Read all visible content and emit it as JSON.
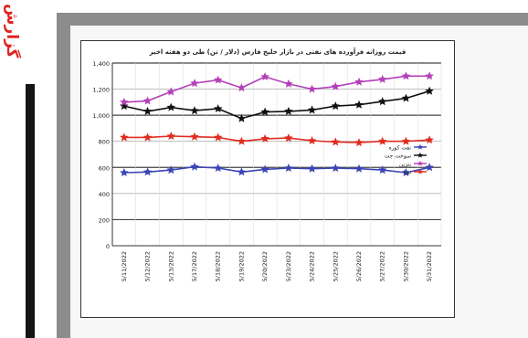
{
  "side_label": "گزارش",
  "chart_data": {
    "type": "line",
    "title": "قیمت روزانه فرآورده های نفتی در بازار خلیج فارس (دلار / تن) طی دو هفته اخیر",
    "xlabel": "",
    "ylabel": "",
    "ylim": [
      0,
      1400
    ],
    "yticks": [
      0,
      200,
      400,
      600,
      800,
      1000,
      1200,
      1400
    ],
    "ytick_labels": [
      "0",
      "200",
      "400",
      "600",
      "800",
      "1,000",
      "1,200",
      "1,400"
    ],
    "grid": true,
    "legend_position": "right",
    "categories": [
      "5/11/2022",
      "5/12/2022",
      "5/13/2022",
      "5/17/2022",
      "5/18/2022",
      "5/19/2022",
      "5/20/2022",
      "5/23/2022",
      "5/24/2022",
      "5/25/2022",
      "5/26/2022",
      "5/27/2022",
      "5/30/2022",
      "5/31/2022"
    ],
    "series": [
      {
        "name": "نفت کوره",
        "color": "#3a44b5",
        "marker": "star",
        "values": [
          560,
          565,
          580,
          605,
          595,
          565,
          585,
          595,
          590,
          595,
          590,
          580,
          560,
          600
        ]
      },
      {
        "name": "سوخت جت",
        "color": "#111111",
        "marker": "star",
        "values": [
          1070,
          1030,
          1060,
          1035,
          1050,
          975,
          1025,
          1030,
          1040,
          1070,
          1080,
          1105,
          1130,
          1185
        ]
      },
      {
        "name": "بنزین",
        "color": "#b340b8",
        "marker": "star",
        "values": [
          1100,
          1110,
          1180,
          1245,
          1270,
          1210,
          1295,
          1240,
          1200,
          1220,
          1255,
          1275,
          1300,
          1300
        ]
      },
      {
        "name": "نفتا",
        "color": "#e02d20",
        "marker": "star",
        "values": [
          830,
          830,
          840,
          835,
          830,
          800,
          820,
          825,
          805,
          795,
          790,
          800,
          800,
          810
        ]
      }
    ]
  }
}
